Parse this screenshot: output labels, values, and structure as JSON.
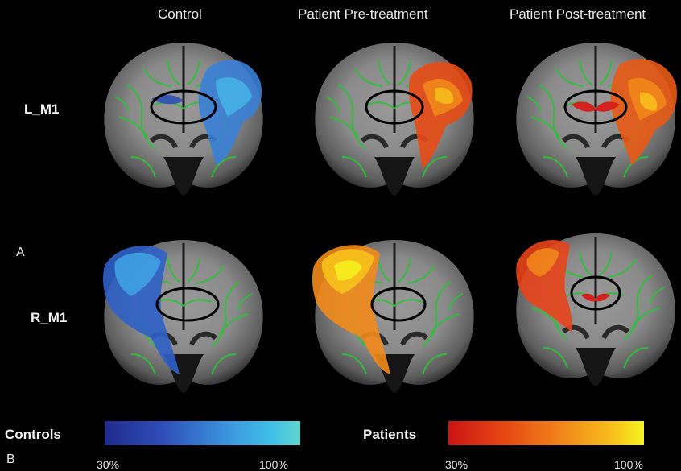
{
  "columns": {
    "control": "Control",
    "pre": "Patient  Pre-treatment",
    "post": "Patient  Post-treatment"
  },
  "rows": {
    "top": "L_M1",
    "bottom": "R_M1"
  },
  "panels": {
    "a": "A",
    "b": "B"
  },
  "legend": {
    "controls_label": "Controls",
    "patients_label": "Patients",
    "controls_min": "30%",
    "controls_max": "100%",
    "patients_min": "30%",
    "patients_max": "100%"
  },
  "colors": {
    "controls_scale": [
      "#1f2a8c",
      "#2f4fb8",
      "#3a8fdc",
      "#3fc0e8",
      "#5fd6cf"
    ],
    "patients_scale": [
      "#cc1414",
      "#e84a14",
      "#f28a1a",
      "#f7c21c",
      "#f5f51e"
    ],
    "tract_green": "#2fbf3a"
  },
  "icons": [
    "brain-slice-image"
  ]
}
